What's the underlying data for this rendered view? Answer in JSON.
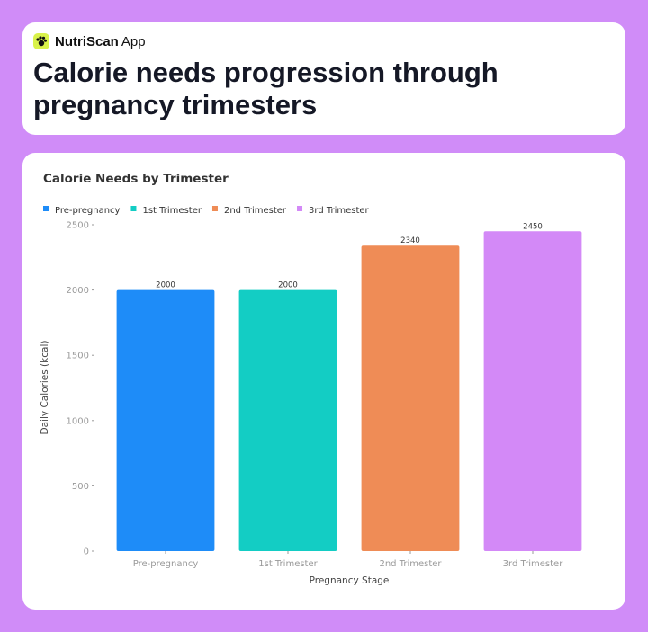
{
  "header": {
    "app_name": "NutriScan",
    "app_suffix": "App",
    "title": "Calorie needs progression through pregnancy trimesters"
  },
  "chart_data": {
    "type": "bar",
    "title": "Calorie Needs by Trimester",
    "categories": [
      "Pre-pregnancy",
      "1st Trimester",
      "2nd Trimester",
      "3rd Trimester"
    ],
    "values": [
      2000,
      2000,
      2340,
      2450
    ],
    "colors": [
      "#1e8cf8",
      "#13cdc4",
      "#ef8c56",
      "#d389f7"
    ],
    "x_label": "Pregnancy Stage",
    "y_label": "Daily Calories (kcal)",
    "ylim": [
      0,
      2500
    ],
    "yticks": [
      0,
      500,
      1000,
      1500,
      2000,
      2500
    ],
    "grid": false
  }
}
